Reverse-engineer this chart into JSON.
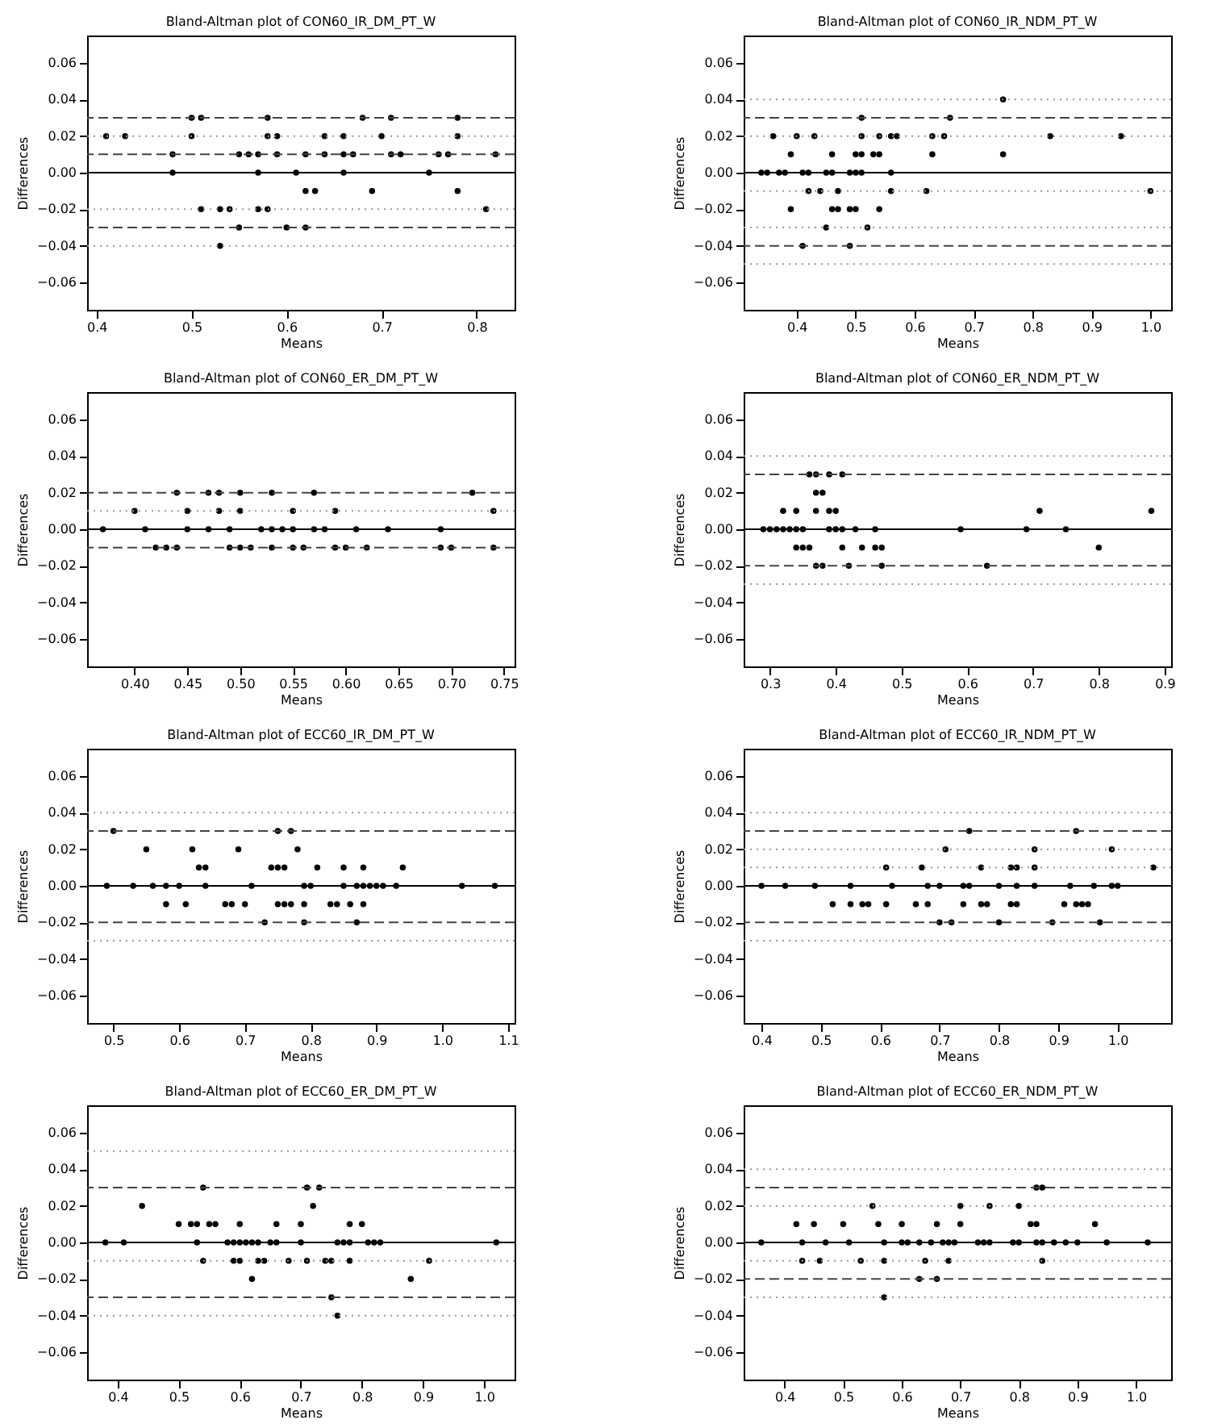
{
  "chart_data": [
    {
      "type": "scatter",
      "title": "Bland-Altman plot of CON60_IR_DM_PT_W",
      "xlabel": "Means",
      "ylabel": "Differences",
      "color": "#000000",
      "marker": "circle",
      "grid": false,
      "x": [
        0.5,
        0.51,
        0.58,
        0.68,
        0.71,
        0.78,
        0.41,
        0.43,
        0.5,
        0.58,
        0.59,
        0.64,
        0.66,
        0.7,
        0.78,
        0.48,
        0.55,
        0.56,
        0.57,
        0.59,
        0.62,
        0.64,
        0.66,
        0.67,
        0.71,
        0.72,
        0.76,
        0.77,
        0.82,
        0.48,
        0.57,
        0.61,
        0.66,
        0.75,
        0.62,
        0.63,
        0.69,
        0.78,
        0.51,
        0.53,
        0.54,
        0.57,
        0.58,
        0.81,
        0.55,
        0.6,
        0.62,
        0.53
      ],
      "values": [
        0.03,
        0.03,
        0.03,
        0.03,
        0.03,
        0.03,
        0.02,
        0.02,
        0.02,
        0.02,
        0.02,
        0.02,
        0.02,
        0.02,
        0.02,
        0.01,
        0.01,
        0.01,
        0.01,
        0.01,
        0.01,
        0.01,
        0.01,
        0.01,
        0.01,
        0.01,
        0.01,
        0.01,
        0.01,
        0,
        0,
        0,
        0,
        0,
        -0.01,
        -0.01,
        -0.01,
        -0.01,
        -0.02,
        -0.02,
        -0.02,
        -0.02,
        -0.02,
        -0.02,
        -0.03,
        -0.03,
        -0.03,
        -0.04
      ],
      "xlim": [
        0.39,
        0.84
      ],
      "xticks": [
        0.4,
        0.5,
        0.6,
        0.7,
        0.8
      ],
      "ylim": [
        -0.075,
        0.075
      ],
      "yticks": [
        {
          "value": -0.06,
          "label": "−0.06"
        },
        {
          "value": -0.04,
          "label": "−0.04"
        },
        {
          "value": -0.02,
          "label": "−0.02"
        },
        {
          "value": 0,
          "label": "0.00"
        },
        {
          "value": 0.02,
          "label": "0.02"
        },
        {
          "value": 0.04,
          "label": "0.04"
        },
        {
          "value": 0.06,
          "label": "0.06"
        }
      ],
      "ref_lines": [
        {
          "axis": "y",
          "value": 0.03,
          "line_style": "dashed",
          "color": "#444444"
        },
        {
          "axis": "y",
          "value": 0.02,
          "line_style": "dotted",
          "color": "#999999"
        },
        {
          "axis": "y",
          "value": 0.01,
          "line_style": "dashed",
          "color": "#444444"
        },
        {
          "axis": "y",
          "value": 0,
          "line_style": "solid",
          "color": "#000000"
        },
        {
          "axis": "y",
          "value": -0.02,
          "line_style": "dotted",
          "color": "#999999"
        },
        {
          "axis": "y",
          "value": -0.03,
          "line_style": "dashed",
          "color": "#444444"
        },
        {
          "axis": "y",
          "value": -0.04,
          "line_style": "dotted",
          "color": "#999999"
        }
      ]
    },
    {
      "type": "scatter",
      "title": "Bland-Altman plot of CON60_IR_NDM_PT_W",
      "xlabel": "Means",
      "ylabel": "Differences",
      "color": "#000000",
      "marker": "circle",
      "grid": false,
      "x": [
        0.75,
        0.51,
        0.66,
        0.36,
        0.4,
        0.43,
        0.51,
        0.54,
        0.56,
        0.57,
        0.63,
        0.65,
        0.83,
        0.95,
        0.39,
        0.46,
        0.5,
        0.51,
        0.53,
        0.54,
        0.63,
        0.75,
        0.34,
        0.35,
        0.37,
        0.38,
        0.41,
        0.42,
        0.45,
        0.46,
        0.49,
        0.5,
        0.51,
        0.56,
        0.42,
        0.44,
        0.47,
        0.56,
        0.62,
        1.0,
        0.39,
        0.46,
        0.47,
        0.49,
        0.5,
        0.54,
        0.45,
        0.52,
        0.41,
        0.49
      ],
      "values": [
        0.04,
        0.03,
        0.03,
        0.02,
        0.02,
        0.02,
        0.02,
        0.02,
        0.02,
        0.02,
        0.02,
        0.02,
        0.02,
        0.02,
        0.01,
        0.01,
        0.01,
        0.01,
        0.01,
        0.01,
        0.01,
        0.01,
        0,
        0,
        0,
        0,
        0,
        0,
        0,
        0,
        0,
        0,
        0,
        0,
        -0.01,
        -0.01,
        -0.01,
        -0.01,
        -0.01,
        -0.01,
        -0.02,
        -0.02,
        -0.02,
        -0.02,
        -0.02,
        -0.02,
        -0.03,
        -0.03,
        -0.04,
        -0.04
      ],
      "xlim": [
        0.31,
        1.035
      ],
      "xticks": [
        0.4,
        0.5,
        0.6,
        0.7,
        0.8,
        0.9,
        {
          "value": 1,
          "label": "1.0"
        }
      ],
      "ylim": [
        -0.075,
        0.075
      ],
      "yticks": [
        {
          "value": -0.06,
          "label": "−0.06"
        },
        {
          "value": -0.04,
          "label": "−0.04"
        },
        {
          "value": -0.02,
          "label": "−0.02"
        },
        {
          "value": 0,
          "label": "0.00"
        },
        {
          "value": 0.02,
          "label": "0.02"
        },
        {
          "value": 0.04,
          "label": "0.04"
        },
        {
          "value": 0.06,
          "label": "0.06"
        }
      ],
      "ref_lines": [
        {
          "axis": "y",
          "value": 0.04,
          "line_style": "dotted",
          "color": "#999999"
        },
        {
          "axis": "y",
          "value": 0.03,
          "line_style": "dashed",
          "color": "#444444"
        },
        {
          "axis": "y",
          "value": 0.02,
          "line_style": "dotted",
          "color": "#999999"
        },
        {
          "axis": "y",
          "value": 0,
          "line_style": "solid",
          "color": "#000000"
        },
        {
          "axis": "y",
          "value": -0.01,
          "line_style": "dotted",
          "color": "#999999"
        },
        {
          "axis": "y",
          "value": -0.03,
          "line_style": "dotted",
          "color": "#999999"
        },
        {
          "axis": "y",
          "value": -0.04,
          "line_style": "dashed",
          "color": "#444444"
        },
        {
          "axis": "y",
          "value": -0.05,
          "line_style": "dotted",
          "color": "#999999"
        }
      ]
    },
    {
      "type": "scatter",
      "title": "Bland-Altman plot of CON60_ER_DM_PT_W",
      "xlabel": "Means",
      "ylabel": "Differences",
      "color": "#000000",
      "marker": "circle",
      "grid": false,
      "x": [
        0.44,
        0.47,
        0.48,
        0.5,
        0.53,
        0.57,
        0.72,
        0.4,
        0.45,
        0.48,
        0.5,
        0.55,
        0.59,
        0.74,
        0.37,
        0.41,
        0.45,
        0.47,
        0.49,
        0.52,
        0.53,
        0.54,
        0.55,
        0.57,
        0.58,
        0.61,
        0.64,
        0.69,
        0.42,
        0.43,
        0.44,
        0.49,
        0.5,
        0.51,
        0.53,
        0.55,
        0.56,
        0.59,
        0.6,
        0.62,
        0.69,
        0.7,
        0.74
      ],
      "values": [
        0.02,
        0.02,
        0.02,
        0.02,
        0.02,
        0.02,
        0.02,
        0.01,
        0.01,
        0.01,
        0.01,
        0.01,
        0.01,
        0.01,
        0,
        0,
        0,
        0,
        0,
        0,
        0,
        0,
        0,
        0,
        0,
        0,
        0,
        0,
        -0.01,
        -0.01,
        -0.01,
        -0.01,
        -0.01,
        -0.01,
        -0.01,
        -0.01,
        -0.01,
        -0.01,
        -0.01,
        -0.01,
        -0.01,
        -0.01,
        -0.01
      ],
      "xlim": [
        0.355,
        0.76
      ],
      "xticks": [
        {
          "value": 0.4,
          "label": "0.40"
        },
        0.45,
        {
          "value": 0.5,
          "label": "0.50"
        },
        0.55,
        {
          "value": 0.6,
          "label": "0.60"
        },
        0.65,
        {
          "value": 0.7,
          "label": "0.70"
        },
        0.75
      ],
      "ylim": [
        -0.075,
        0.075
      ],
      "yticks": [
        {
          "value": -0.06,
          "label": "−0.06"
        },
        {
          "value": -0.04,
          "label": "−0.04"
        },
        {
          "value": -0.02,
          "label": "−0.02"
        },
        {
          "value": 0,
          "label": "0.00"
        },
        {
          "value": 0.02,
          "label": "0.02"
        },
        {
          "value": 0.04,
          "label": "0.04"
        },
        {
          "value": 0.06,
          "label": "0.06"
        }
      ],
      "ref_lines": [
        {
          "axis": "y",
          "value": 0.02,
          "line_style": "dashed",
          "color": "#444444"
        },
        {
          "axis": "y",
          "value": 0.01,
          "line_style": "dotted",
          "color": "#999999"
        },
        {
          "axis": "y",
          "value": 0,
          "line_style": "solid",
          "color": "#000000"
        },
        {
          "axis": "y",
          "value": -0.01,
          "line_style": "dashed",
          "color": "#444444"
        }
      ]
    },
    {
      "type": "scatter",
      "title": "Bland-Altman plot of CON60_ER_NDM_PT_W",
      "xlabel": "Means",
      "ylabel": "Differences",
      "color": "#000000",
      "marker": "circle",
      "grid": false,
      "x": [
        0.36,
        0.37,
        0.39,
        0.41,
        0.37,
        0.38,
        0.32,
        0.34,
        0.37,
        0.39,
        0.4,
        0.71,
        0.88,
        0.29,
        0.3,
        0.31,
        0.32,
        0.33,
        0.34,
        0.35,
        0.39,
        0.4,
        0.41,
        0.43,
        0.46,
        0.59,
        0.69,
        0.75,
        0.34,
        0.35,
        0.36,
        0.41,
        0.44,
        0.46,
        0.47,
        0.8,
        0.37,
        0.38,
        0.42,
        0.47,
        0.63
      ],
      "values": [
        0.03,
        0.03,
        0.03,
        0.03,
        0.02,
        0.02,
        0.01,
        0.01,
        0.01,
        0.01,
        0.01,
        0.01,
        0.01,
        0,
        0,
        0,
        0,
        0,
        0,
        0,
        0,
        0,
        0,
        0,
        0,
        0,
        0,
        0,
        -0.01,
        -0.01,
        -0.01,
        -0.01,
        -0.01,
        -0.01,
        -0.01,
        -0.01,
        -0.02,
        -0.02,
        -0.02,
        -0.02,
        -0.02
      ],
      "xlim": [
        0.26,
        0.91
      ],
      "xticks": [
        0.3,
        0.4,
        0.5,
        0.6,
        0.7,
        0.8,
        0.9
      ],
      "ylim": [
        -0.075,
        0.075
      ],
      "yticks": [
        {
          "value": -0.06,
          "label": "−0.06"
        },
        {
          "value": -0.04,
          "label": "−0.04"
        },
        {
          "value": -0.02,
          "label": "−0.02"
        },
        {
          "value": 0,
          "label": "0.00"
        },
        {
          "value": 0.02,
          "label": "0.02"
        },
        {
          "value": 0.04,
          "label": "0.04"
        },
        {
          "value": 0.06,
          "label": "0.06"
        }
      ],
      "ref_lines": [
        {
          "axis": "y",
          "value": 0.04,
          "line_style": "dotted",
          "color": "#999999"
        },
        {
          "axis": "y",
          "value": 0.03,
          "line_style": "dashed",
          "color": "#444444"
        },
        {
          "axis": "y",
          "value": 0,
          "line_style": "solid",
          "color": "#000000"
        },
        {
          "axis": "y",
          "value": -0.02,
          "line_style": "dashed",
          "color": "#444444"
        },
        {
          "axis": "y",
          "value": -0.03,
          "line_style": "dotted",
          "color": "#999999"
        }
      ]
    },
    {
      "type": "scatter",
      "title": "Bland-Altman plot of ECC60_IR_DM_PT_W",
      "xlabel": "Means",
      "ylabel": "Differences",
      "color": "#000000",
      "marker": "circle",
      "grid": false,
      "x": [
        0.5,
        0.75,
        0.77,
        0.55,
        0.62,
        0.69,
        0.78,
        0.63,
        0.64,
        0.74,
        0.75,
        0.76,
        0.81,
        0.85,
        0.88,
        0.94,
        0.49,
        0.53,
        0.56,
        0.58,
        0.6,
        0.64,
        0.71,
        0.79,
        0.8,
        0.85,
        0.87,
        0.88,
        0.89,
        0.9,
        0.91,
        0.93,
        1.03,
        1.08,
        0.58,
        0.61,
        0.67,
        0.68,
        0.7,
        0.75,
        0.76,
        0.77,
        0.79,
        0.83,
        0.84,
        0.86,
        0.88,
        0.73,
        0.79,
        0.87
      ],
      "values": [
        0.03,
        0.03,
        0.03,
        0.02,
        0.02,
        0.02,
        0.02,
        0.01,
        0.01,
        0.01,
        0.01,
        0.01,
        0.01,
        0.01,
        0.01,
        0.01,
        0,
        0,
        0,
        0,
        0,
        0,
        0,
        0,
        0,
        0,
        0,
        0,
        0,
        0,
        0,
        0,
        0,
        0,
        -0.01,
        -0.01,
        -0.01,
        -0.01,
        -0.01,
        -0.01,
        -0.01,
        -0.01,
        -0.01,
        -0.01,
        -0.01,
        -0.01,
        -0.01,
        -0.02,
        -0.02,
        -0.02
      ],
      "xlim": [
        0.46,
        1.11
      ],
      "xticks": [
        0.5,
        0.6,
        0.7,
        0.8,
        0.9,
        {
          "value": 1,
          "label": "1.0"
        },
        1.1
      ],
      "ylim": [
        -0.075,
        0.075
      ],
      "yticks": [
        {
          "value": -0.06,
          "label": "−0.06"
        },
        {
          "value": -0.04,
          "label": "−0.04"
        },
        {
          "value": -0.02,
          "label": "−0.02"
        },
        {
          "value": 0,
          "label": "0.00"
        },
        {
          "value": 0.02,
          "label": "0.02"
        },
        {
          "value": 0.04,
          "label": "0.04"
        },
        {
          "value": 0.06,
          "label": "0.06"
        }
      ],
      "ref_lines": [
        {
          "axis": "y",
          "value": 0.04,
          "line_style": "dotted",
          "color": "#999999"
        },
        {
          "axis": "y",
          "value": 0.03,
          "line_style": "dashed",
          "color": "#444444"
        },
        {
          "axis": "y",
          "value": 0,
          "line_style": "solid",
          "color": "#000000"
        },
        {
          "axis": "y",
          "value": -0.02,
          "line_style": "dashed",
          "color": "#444444"
        },
        {
          "axis": "y",
          "value": -0.03,
          "line_style": "dotted",
          "color": "#999999"
        }
      ]
    },
    {
      "type": "scatter",
      "title": "Bland-Altman plot of ECC60_IR_NDM_PT_W",
      "xlabel": "Means",
      "ylabel": "Differences",
      "color": "#000000",
      "marker": "circle",
      "grid": false,
      "x": [
        0.75,
        0.93,
        0.71,
        0.86,
        0.99,
        0.61,
        0.67,
        0.77,
        0.82,
        0.83,
        0.86,
        1.06,
        0.4,
        0.44,
        0.49,
        0.55,
        0.62,
        0.68,
        0.7,
        0.74,
        0.75,
        0.8,
        0.83,
        0.86,
        0.92,
        0.96,
        0.99,
        1.0,
        0.52,
        0.55,
        0.57,
        0.58,
        0.61,
        0.66,
        0.68,
        0.74,
        0.77,
        0.78,
        0.82,
        0.83,
        0.91,
        0.93,
        0.94,
        0.95,
        0.7,
        0.72,
        0.8,
        0.89,
        0.97
      ],
      "values": [
        0.03,
        0.03,
        0.02,
        0.02,
        0.02,
        0.01,
        0.01,
        0.01,
        0.01,
        0.01,
        0.01,
        0.01,
        0,
        0,
        0,
        0,
        0,
        0,
        0,
        0,
        0,
        0,
        0,
        0,
        0,
        0,
        0,
        0,
        -0.01,
        -0.01,
        -0.01,
        -0.01,
        -0.01,
        -0.01,
        -0.01,
        -0.01,
        -0.01,
        -0.01,
        -0.01,
        -0.01,
        -0.01,
        -0.01,
        -0.01,
        -0.01,
        -0.02,
        -0.02,
        -0.02,
        -0.02,
        -0.02
      ],
      "xlim": [
        0.37,
        1.09
      ],
      "xticks": [
        0.4,
        0.5,
        0.6,
        0.7,
        0.8,
        0.9,
        {
          "value": 1,
          "label": "1.0"
        }
      ],
      "ylim": [
        -0.075,
        0.075
      ],
      "yticks": [
        {
          "value": -0.06,
          "label": "−0.06"
        },
        {
          "value": -0.04,
          "label": "−0.04"
        },
        {
          "value": -0.02,
          "label": "−0.02"
        },
        {
          "value": 0,
          "label": "0.00"
        },
        {
          "value": 0.02,
          "label": "0.02"
        },
        {
          "value": 0.04,
          "label": "0.04"
        },
        {
          "value": 0.06,
          "label": "0.06"
        }
      ],
      "ref_lines": [
        {
          "axis": "y",
          "value": 0.04,
          "line_style": "dotted",
          "color": "#999999"
        },
        {
          "axis": "y",
          "value": 0.03,
          "line_style": "dashed",
          "color": "#444444"
        },
        {
          "axis": "y",
          "value": 0.02,
          "line_style": "dotted",
          "color": "#999999"
        },
        {
          "axis": "y",
          "value": 0.01,
          "line_style": "dotted",
          "color": "#999999"
        },
        {
          "axis": "y",
          "value": 0,
          "line_style": "solid",
          "color": "#000000"
        },
        {
          "axis": "y",
          "value": -0.02,
          "line_style": "dashed",
          "color": "#444444"
        },
        {
          "axis": "y",
          "value": -0.03,
          "line_style": "dotted",
          "color": "#999999"
        }
      ]
    },
    {
      "type": "scatter",
      "title": "Bland-Altman plot of ECC60_ER_DM_PT_W",
      "xlabel": "Means",
      "ylabel": "Differences",
      "color": "#000000",
      "marker": "circle",
      "grid": false,
      "x": [
        0.54,
        0.71,
        0.73,
        0.44,
        0.72,
        0.5,
        0.52,
        0.53,
        0.55,
        0.56,
        0.6,
        0.66,
        0.7,
        0.78,
        0.8,
        0.38,
        0.41,
        0.53,
        0.58,
        0.59,
        0.6,
        0.61,
        0.62,
        0.63,
        0.65,
        0.66,
        0.7,
        0.76,
        0.77,
        0.78,
        0.81,
        0.82,
        0.83,
        1.02,
        0.54,
        0.59,
        0.6,
        0.63,
        0.64,
        0.68,
        0.71,
        0.74,
        0.75,
        0.78,
        0.91,
        0.62,
        0.88,
        0.75,
        0.76
      ],
      "values": [
        0.03,
        0.03,
        0.03,
        0.02,
        0.02,
        0.01,
        0.01,
        0.01,
        0.01,
        0.01,
        0.01,
        0.01,
        0.01,
        0.01,
        0.01,
        0,
        0,
        0,
        0,
        0,
        0,
        0,
        0,
        0,
        0,
        0,
        0,
        0,
        0,
        0,
        0,
        0,
        0,
        0,
        -0.01,
        -0.01,
        -0.01,
        -0.01,
        -0.01,
        -0.01,
        -0.01,
        -0.01,
        -0.01,
        -0.01,
        -0.01,
        -0.02,
        -0.02,
        -0.03,
        -0.04
      ],
      "xlim": [
        0.35,
        1.05
      ],
      "xticks": [
        0.4,
        0.5,
        0.6,
        0.7,
        0.8,
        0.9,
        {
          "value": 1,
          "label": "1.0"
        }
      ],
      "ylim": [
        -0.075,
        0.075
      ],
      "yticks": [
        {
          "value": -0.06,
          "label": "−0.06"
        },
        {
          "value": -0.04,
          "label": "−0.04"
        },
        {
          "value": -0.02,
          "label": "−0.02"
        },
        {
          "value": 0,
          "label": "0.00"
        },
        {
          "value": 0.02,
          "label": "0.02"
        },
        {
          "value": 0.04,
          "label": "0.04"
        },
        {
          "value": 0.06,
          "label": "0.06"
        }
      ],
      "ref_lines": [
        {
          "axis": "y",
          "value": 0.05,
          "line_style": "dotted",
          "color": "#999999"
        },
        {
          "axis": "y",
          "value": 0.03,
          "line_style": "dashed",
          "color": "#444444"
        },
        {
          "axis": "y",
          "value": 0,
          "line_style": "solid",
          "color": "#000000"
        },
        {
          "axis": "y",
          "value": -0.01,
          "line_style": "dotted",
          "color": "#999999"
        },
        {
          "axis": "y",
          "value": -0.03,
          "line_style": "dashed",
          "color": "#444444"
        },
        {
          "axis": "y",
          "value": -0.04,
          "line_style": "dotted",
          "color": "#999999"
        }
      ]
    },
    {
      "type": "scatter",
      "title": "Bland-Altman plot of ECC60_ER_NDM_PT_W",
      "xlabel": "Means",
      "ylabel": "Differences",
      "color": "#000000",
      "marker": "circle",
      "grid": false,
      "x": [
        0.83,
        0.84,
        0.55,
        0.7,
        0.75,
        0.8,
        0.42,
        0.45,
        0.5,
        0.56,
        0.6,
        0.66,
        0.7,
        0.82,
        0.83,
        0.93,
        0.36,
        0.43,
        0.47,
        0.51,
        0.57,
        0.6,
        0.61,
        0.63,
        0.65,
        0.67,
        0.68,
        0.69,
        0.73,
        0.74,
        0.75,
        0.79,
        0.8,
        0.83,
        0.84,
        0.86,
        0.88,
        0.9,
        0.95,
        1.02,
        0.43,
        0.46,
        0.53,
        0.57,
        0.64,
        0.68,
        0.84,
        0.63,
        0.66,
        0.57
      ],
      "values": [
        0.03,
        0.03,
        0.02,
        0.02,
        0.02,
        0.02,
        0.01,
        0.01,
        0.01,
        0.01,
        0.01,
        0.01,
        0.01,
        0.01,
        0.01,
        0.01,
        0,
        0,
        0,
        0,
        0,
        0,
        0,
        0,
        0,
        0,
        0,
        0,
        0,
        0,
        0,
        0,
        0,
        0,
        0,
        0,
        0,
        0,
        0,
        0,
        -0.01,
        -0.01,
        -0.01,
        -0.01,
        -0.01,
        -0.01,
        -0.01,
        -0.02,
        -0.02,
        -0.03
      ],
      "xlim": [
        0.33,
        1.06
      ],
      "xticks": [
        0.4,
        0.5,
        0.6,
        0.7,
        0.8,
        0.9,
        {
          "value": 1,
          "label": "1.0"
        }
      ],
      "ylim": [
        -0.075,
        0.075
      ],
      "yticks": [
        {
          "value": -0.06,
          "label": "−0.06"
        },
        {
          "value": -0.04,
          "label": "−0.04"
        },
        {
          "value": -0.02,
          "label": "−0.02"
        },
        {
          "value": 0,
          "label": "0.00"
        },
        {
          "value": 0.02,
          "label": "0.02"
        },
        {
          "value": 0.04,
          "label": "0.04"
        },
        {
          "value": 0.06,
          "label": "0.06"
        }
      ],
      "ref_lines": [
        {
          "axis": "y",
          "value": 0.04,
          "line_style": "dotted",
          "color": "#999999"
        },
        {
          "axis": "y",
          "value": 0.03,
          "line_style": "dashed",
          "color": "#444444"
        },
        {
          "axis": "y",
          "value": 0.02,
          "line_style": "dotted",
          "color": "#999999"
        },
        {
          "axis": "y",
          "value": 0,
          "line_style": "solid",
          "color": "#000000"
        },
        {
          "axis": "y",
          "value": -0.01,
          "line_style": "dotted",
          "color": "#999999"
        },
        {
          "axis": "y",
          "value": -0.02,
          "line_style": "dashed",
          "color": "#444444"
        },
        {
          "axis": "y",
          "value": -0.03,
          "line_style": "dotted",
          "color": "#999999"
        }
      ]
    }
  ]
}
